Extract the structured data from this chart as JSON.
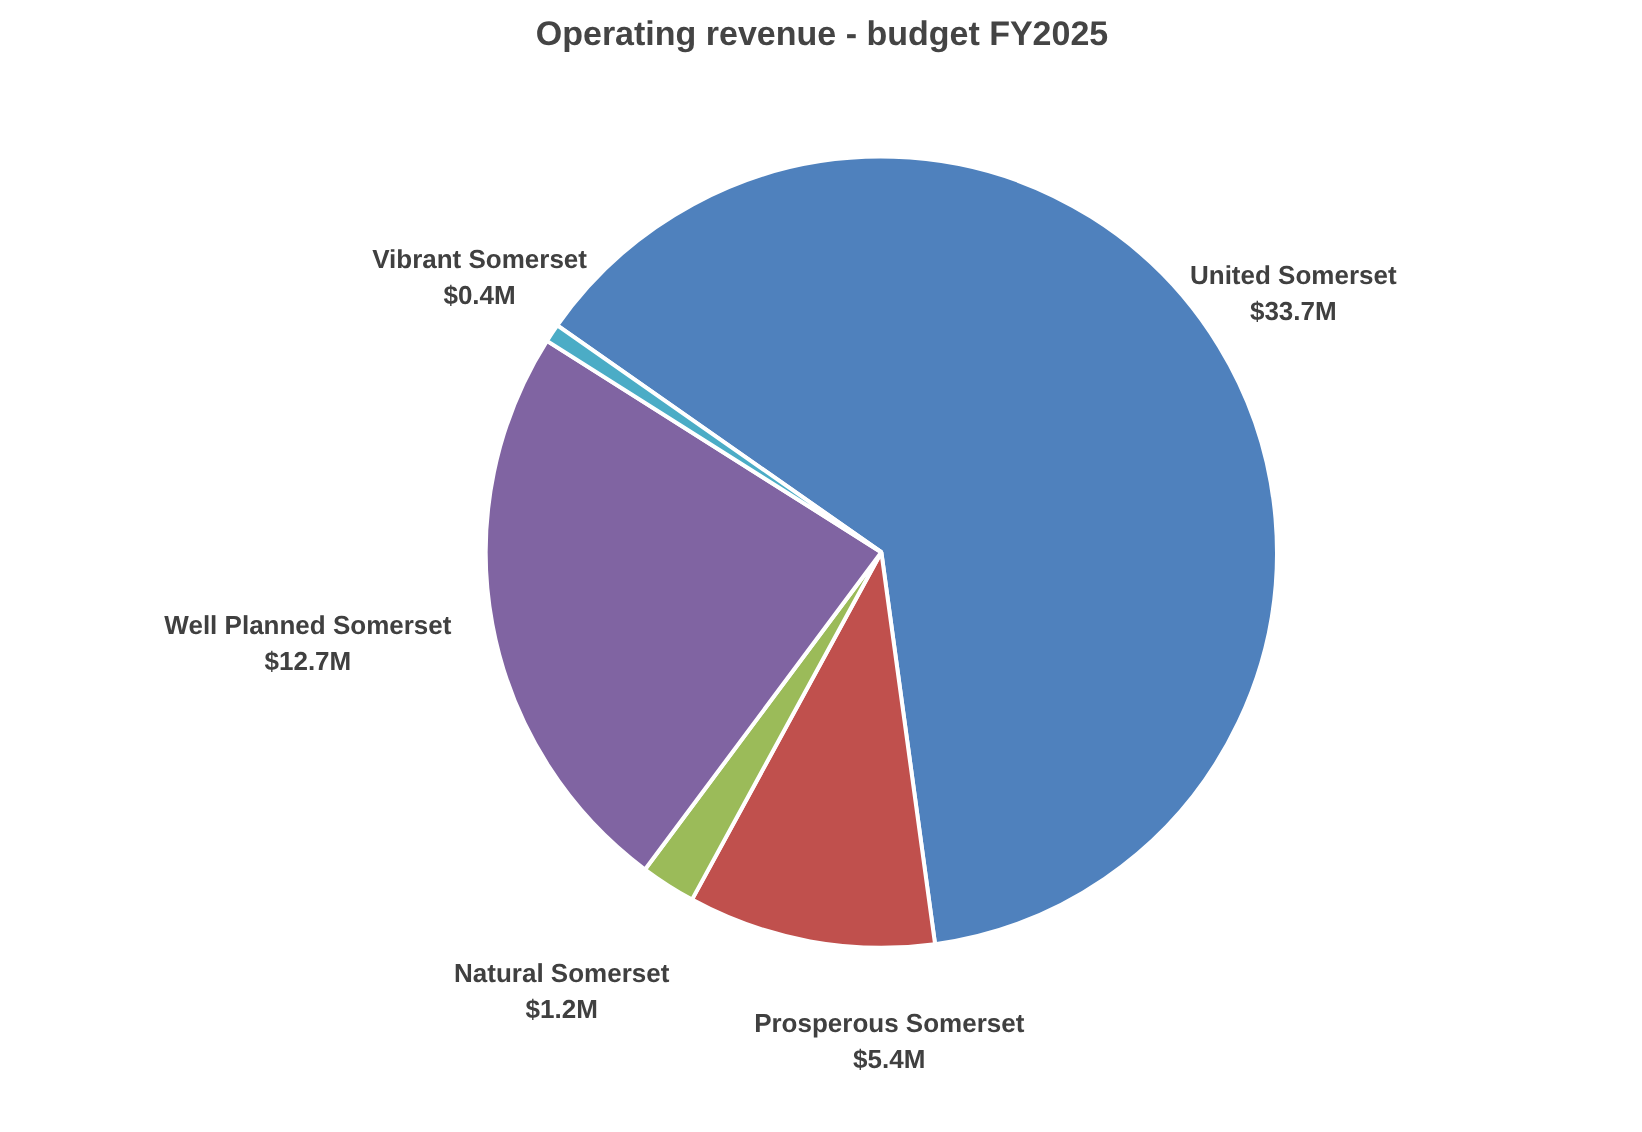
{
  "chart_data": {
    "type": "pie",
    "title": "Operating revenue - budget FY2025",
    "categories": [
      "United Somerset",
      "Prosperous Somerset",
      "Natural Somerset",
      "Well Planned Somerset",
      "Vibrant Somerset"
    ],
    "values": [
      33.7,
      5.4,
      1.2,
      12.7,
      0.4
    ],
    "value_labels": [
      "$33.7M",
      "$5.4M",
      "$1.2M",
      "$12.7M",
      "$0.4M"
    ],
    "colors": [
      "#4f81bd",
      "#c0504d",
      "#9bbb59",
      "#8064a2",
      "#4bacc6"
    ]
  }
}
